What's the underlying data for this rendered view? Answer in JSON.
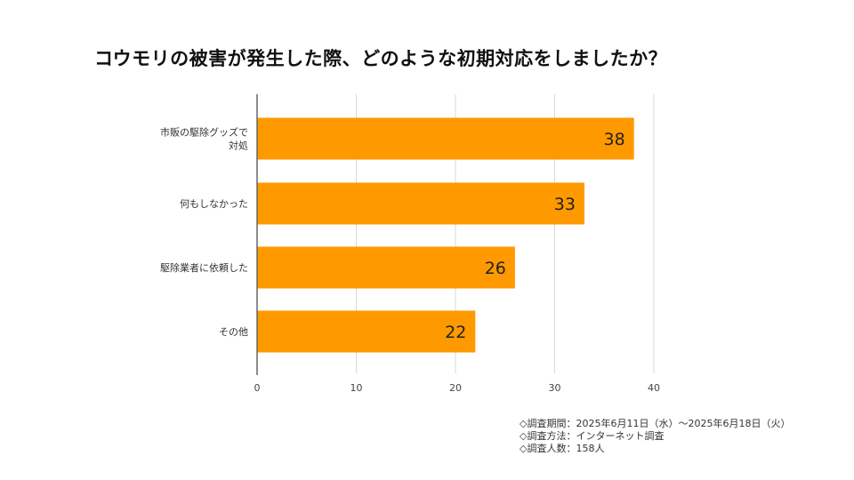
{
  "title": "コウモリの被害が発生した際、どのような初期対応をしましたか？",
  "chart_data": {
    "type": "bar",
    "orientation": "horizontal",
    "categories": [
      [
        "市販の駆除グッズで",
        "対処"
      ],
      [
        "何もしなかった"
      ],
      [
        "駆除業者に依頼した"
      ],
      [
        "その他"
      ]
    ],
    "values": [
      38,
      33,
      26,
      22
    ],
    "xlim": [
      0,
      40
    ],
    "xticks": [
      0,
      10,
      20,
      30,
      40
    ],
    "grid": true,
    "legend": "none",
    "colors": {
      "bar": "#FF9900",
      "grid": "#D9D9D9",
      "axis": "#666666",
      "label": "#222222"
    }
  },
  "notes": [
    "◇調査期間：2025年6月11日（水）～2025年6月18日（火）",
    "◇調査方法：インターネット調査",
    "◇調査人数：158人"
  ]
}
